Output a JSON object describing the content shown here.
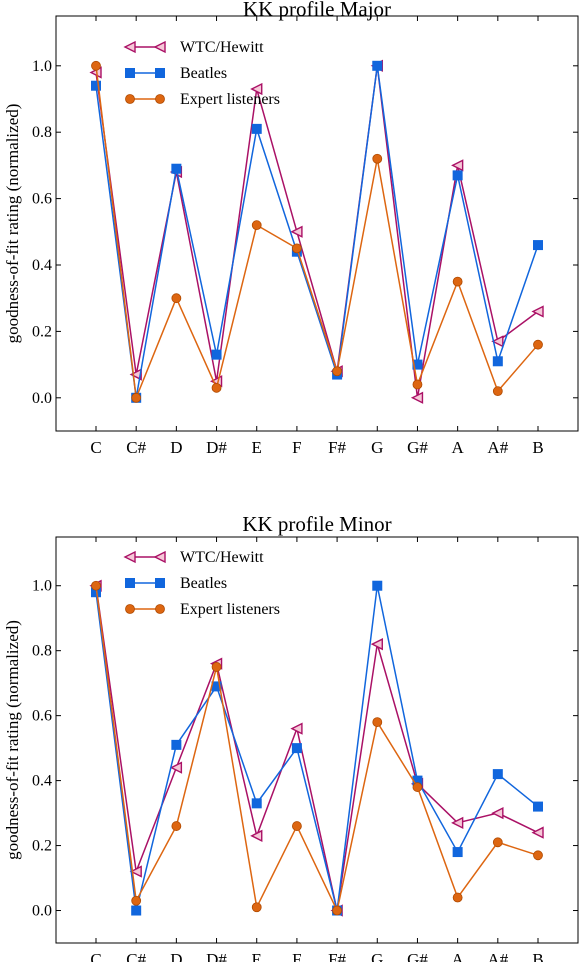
{
  "chart_data": [
    {
      "type": "line",
      "title": "KK profile Major",
      "xlabel": "",
      "ylabel": "goodness-of-fit rating (normalized)",
      "categories": [
        "C",
        "C#",
        "D",
        "D#",
        "E",
        "F",
        "F#",
        "G",
        "G#",
        "A",
        "A#",
        "B"
      ],
      "ylim": [
        -0.1,
        1.15
      ],
      "yticks": [
        "0.0",
        "0.2",
        "0.4",
        "0.6",
        "0.8",
        "1.0"
      ],
      "grid": false,
      "legend": "top-left",
      "series": [
        {
          "name": "WTC/Hewitt",
          "color": "#aa1166",
          "marker": "triangle-left",
          "values": [
            0.98,
            0.07,
            0.68,
            0.05,
            0.93,
            0.5,
            0.08,
            1.0,
            0.0,
            0.7,
            0.17,
            0.26
          ]
        },
        {
          "name": "Beatles",
          "color": "#1166dd",
          "marker": "square",
          "values": [
            0.94,
            0.0,
            0.69,
            0.13,
            0.81,
            0.44,
            0.07,
            1.0,
            0.1,
            0.67,
            0.11,
            0.46
          ]
        },
        {
          "name": "Expert listeners",
          "color": "#dd6611",
          "marker": "circle",
          "values": [
            1.0,
            0.0,
            0.3,
            0.03,
            0.52,
            0.45,
            0.08,
            0.72,
            0.04,
            0.35,
            0.02,
            0.16
          ]
        }
      ]
    },
    {
      "type": "line",
      "title": "KK profile Minor",
      "xlabel": "",
      "ylabel": "goodness-of-fit rating (normalized)",
      "categories": [
        "C",
        "C#",
        "D",
        "D#",
        "E",
        "F",
        "F#",
        "G",
        "G#",
        "A",
        "A#",
        "B"
      ],
      "ylim": [
        -0.1,
        1.15
      ],
      "yticks": [
        "0.0",
        "0.2",
        "0.4",
        "0.6",
        "0.8",
        "1.0"
      ],
      "grid": false,
      "legend": "top-left",
      "series": [
        {
          "name": "WTC/Hewitt",
          "color": "#aa1166",
          "marker": "triangle-left",
          "values": [
            1.0,
            0.12,
            0.44,
            0.76,
            0.23,
            0.56,
            0.0,
            0.82,
            0.39,
            0.27,
            0.3,
            0.24
          ]
        },
        {
          "name": "Beatles",
          "color": "#1166dd",
          "marker": "square",
          "values": [
            0.98,
            0.0,
            0.51,
            0.69,
            0.33,
            0.5,
            0.0,
            1.0,
            0.4,
            0.18,
            0.42,
            0.32
          ]
        },
        {
          "name": "Expert listeners",
          "color": "#dd6611",
          "marker": "circle",
          "values": [
            1.0,
            0.03,
            0.26,
            0.75,
            0.01,
            0.26,
            0.0,
            0.58,
            0.38,
            0.04,
            0.21,
            0.17
          ]
        }
      ]
    }
  ]
}
